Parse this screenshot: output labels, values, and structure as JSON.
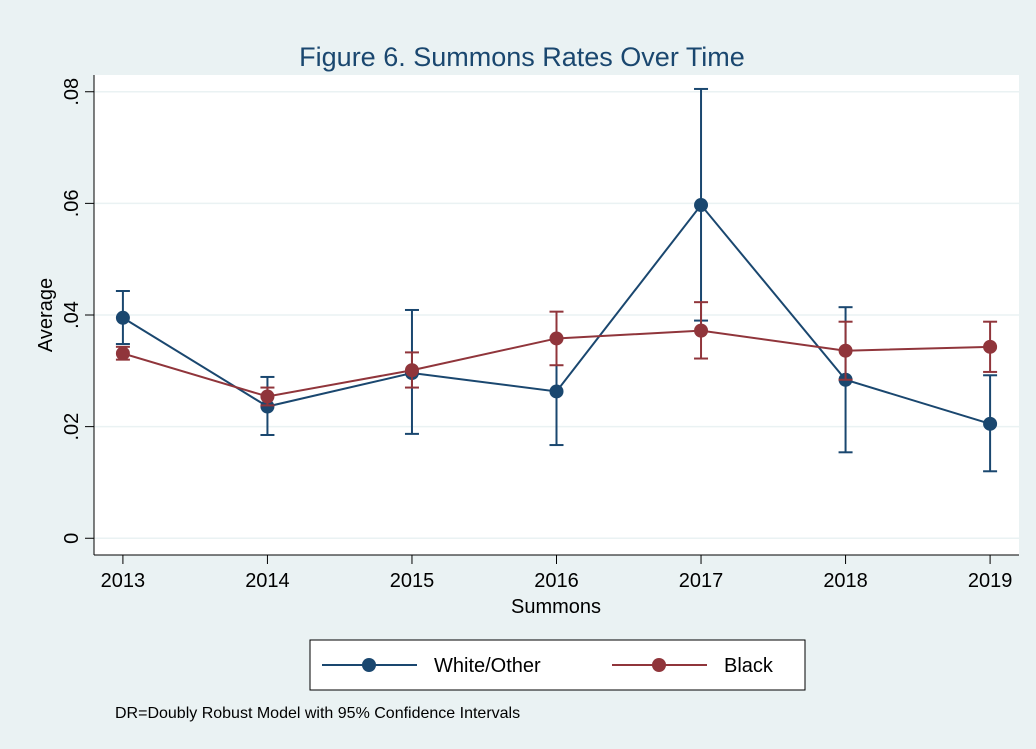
{
  "chart_data": {
    "type": "line",
    "title": "Figure 6. Summons Rates Over Time",
    "xlabel": "Summons",
    "ylabel": "Average",
    "note": "DR=Doubly Robust Model with 95% Confidence Intervals",
    "x": [
      2013,
      2014,
      2015,
      2016,
      2017,
      2018,
      2019
    ],
    "xlim": [
      2012.8,
      2019.2
    ],
    "xticks": [
      2013,
      2014,
      2015,
      2016,
      2017,
      2018,
      2019
    ],
    "ylim": [
      -0.003,
      0.083
    ],
    "yticks": [
      0,
      {
        "value": 0.02,
        "label": ".02"
      },
      {
        "value": 0.04,
        "label": ".04"
      },
      {
        "value": 0.06,
        "label": ".06"
      },
      {
        "value": 0.08,
        "label": ".08"
      }
    ],
    "grid": true,
    "legend": "bottom",
    "series": [
      {
        "name": "White/Other",
        "color": "#1a476f",
        "values": [
          0.0395,
          0.0236,
          0.0296,
          0.0263,
          0.0597,
          0.0284,
          0.0205
        ],
        "lower": [
          0.0348,
          0.0185,
          0.0187,
          0.0167,
          0.039,
          0.0154,
          0.012
        ],
        "upper": [
          0.0443,
          0.0289,
          0.0409,
          0.0358,
          0.0805,
          0.0414,
          0.0292
        ]
      },
      {
        "name": "Black",
        "color": "#90353b",
        "values": [
          0.0331,
          0.0254,
          0.0301,
          0.0358,
          0.0372,
          0.0336,
          0.0343
        ],
        "lower": [
          0.032,
          0.0238,
          0.027,
          0.031,
          0.0322,
          0.0284,
          0.0298
        ],
        "upper": [
          0.0343,
          0.027,
          0.0333,
          0.0406,
          0.0423,
          0.0388,
          0.0388
        ]
      }
    ]
  }
}
